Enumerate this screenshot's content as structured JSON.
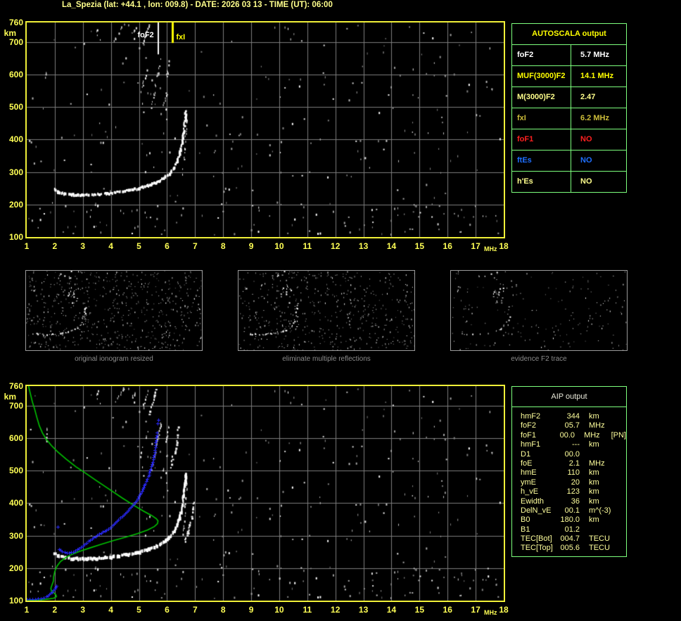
{
  "title": "La_Spezia (lat: +44.1 , lon: 009.8) - DATE: 2026 03 13 - TIME (UT): 06:00",
  "colors": {
    "background": "#000000",
    "plot_border": "#f0f038",
    "grid": "#7d7d7d",
    "axis_label": "#ffff55",
    "title_yellow": "#ffff8c",
    "table_border": "#7dff7d",
    "trace_white": "#ffffff",
    "profile_green": "#00c400",
    "trace_blue": "#2a2aff",
    "caption_gray": "#8c8c8c"
  },
  "axes": {
    "xticks": [
      "1",
      "2",
      "3",
      "4",
      "5",
      "6",
      "7",
      "8",
      "9",
      "10",
      "11",
      "12",
      "13",
      "14",
      "15",
      "16",
      "17",
      "18"
    ],
    "xunit": "MHz",
    "yticks": [
      "760",
      "700",
      "600",
      "500",
      "400",
      "300",
      "200",
      "100"
    ],
    "yunit": "km",
    "xlim": [
      1,
      18
    ],
    "ylim": [
      100,
      760
    ]
  },
  "autoscala": {
    "title": "AUTOSCALA output",
    "rows": [
      {
        "label": "foF2",
        "value": "5.7 MHz",
        "color": "#ffffff"
      },
      {
        "label": "MUF(3000)F2",
        "value": "14.1 MHz",
        "color": "#ffff00"
      },
      {
        "label": "M(3000)F2",
        "value": "2.47",
        "color": "#ffff8c"
      },
      {
        "label": "fxI",
        "value": "6.2 MHz",
        "color": "#cdbd3a"
      },
      {
        "label": "foF1",
        "value": "NO",
        "color": "#ff2020"
      },
      {
        "label": "ftEs",
        "value": "NO",
        "color": "#1f6fff"
      },
      {
        "label": "h'Es",
        "value": "NO",
        "color": "#ffff8c"
      }
    ]
  },
  "aip": {
    "title": "AIP output",
    "rows": [
      {
        "label": "hmF2",
        "value": "344",
        "unit": "km",
        "extra": ""
      },
      {
        "label": "foF2",
        "value": "05.7",
        "unit": "MHz",
        "extra": ""
      },
      {
        "label": "foF1",
        "value": "00.0",
        "unit": "MHz",
        "extra": "[PN]"
      },
      {
        "label": "hmF1",
        "value": "---",
        "unit": "km",
        "extra": ""
      },
      {
        "label": "D1",
        "value": "00.0",
        "unit": "",
        "extra": ""
      },
      {
        "label": "foE",
        "value": "2.1",
        "unit": "MHz",
        "extra": ""
      },
      {
        "label": "hmE",
        "value": "110",
        "unit": "km",
        "extra": ""
      },
      {
        "label": "ymE",
        "value": "20",
        "unit": "km",
        "extra": ""
      },
      {
        "label": "h_vE",
        "value": "123",
        "unit": "km",
        "extra": ""
      },
      {
        "label": "Ewidth",
        "value": "36",
        "unit": "km",
        "extra": ""
      },
      {
        "label": "DelN_vE",
        "value": "00.1",
        "unit": "m^(-3)",
        "extra": ""
      },
      {
        "label": "B0",
        "value": "180.0",
        "unit": "km",
        "extra": ""
      },
      {
        "label": "B1",
        "value": "01.2",
        "unit": "",
        "extra": ""
      },
      {
        "label": "TEC[Bot]",
        "value": "004.7",
        "unit": "TECU",
        "extra": ""
      },
      {
        "label": "TEC[Top]",
        "value": "005.6",
        "unit": "TECU",
        "extra": ""
      }
    ]
  },
  "thumbnails": {
    "items": [
      {
        "caption": "original ionogram resized"
      },
      {
        "caption": "eliminate multiple reflections"
      },
      {
        "caption": "evidence F2 trace"
      }
    ]
  },
  "chart_data": [
    {
      "id": "top-ionogram",
      "type": "scatter",
      "title": "autoscaled ionogram with foF2 / fxI markers",
      "xlabel": "MHz",
      "ylabel": "km",
      "xlim": [
        1,
        18
      ],
      "ylim": [
        100,
        760
      ],
      "grid": true,
      "f2_trace": [
        [
          1.95,
          250
        ],
        [
          2.1,
          242
        ],
        [
          2.3,
          237
        ],
        [
          2.6,
          234
        ],
        [
          3.0,
          233
        ],
        [
          3.4,
          234
        ],
        [
          3.8,
          237
        ],
        [
          4.2,
          241
        ],
        [
          4.6,
          247
        ],
        [
          5.0,
          254
        ],
        [
          5.3,
          262
        ],
        [
          5.6,
          272
        ],
        [
          5.85,
          284
        ],
        [
          6.05,
          298
        ],
        [
          6.2,
          314
        ],
        [
          6.32,
          334
        ],
        [
          6.42,
          358
        ],
        [
          6.5,
          390
        ],
        [
          6.56,
          425
        ],
        [
          6.61,
          460
        ],
        [
          6.64,
          492
        ]
      ],
      "echoes": [
        [
          [
            4.08,
            702
          ],
          [
            4.45,
            758
          ]
        ],
        [
          [
            4.62,
            712
          ],
          [
            4.92,
            750
          ]
        ],
        [
          [
            5.02,
            542
          ],
          [
            5.3,
            622
          ]
        ],
        [
          [
            5.42,
            498
          ],
          [
            5.6,
            566
          ]
        ],
        [
          [
            5.58,
            572
          ],
          [
            5.77,
            650
          ]
        ],
        [
          [
            5.84,
            500
          ],
          [
            6.0,
            556
          ]
        ],
        [
          [
            5.95,
            588
          ],
          [
            6.06,
            642
          ]
        ],
        [
          [
            6.54,
            296
          ],
          [
            6.63,
            376
          ]
        ],
        [
          [
            6.62,
            386
          ],
          [
            6.7,
            462
          ]
        ],
        [
          [
            5.14,
            700
          ],
          [
            5.34,
            756
          ]
        ],
        [
          [
            1.67,
            595
          ],
          [
            1.7,
            632
          ]
        ]
      ],
      "markers": [
        {
          "name": "foF2",
          "f": 5.7,
          "h_end": 662,
          "color": "#ffffff"
        },
        {
          "name": "fxI",
          "f": 6.2,
          "h_end": 697,
          "color": "#ffff00"
        }
      ]
    },
    {
      "id": "bottom-ionogram-aip",
      "type": "scatter",
      "title": "ionogram with restored electron density profile (green) and scaled trace (blue)",
      "xlabel": "MHz",
      "ylabel": "km",
      "xlim": [
        1,
        18
      ],
      "ylim": [
        100,
        760
      ],
      "grid": true,
      "background_note": "same ionogram trace and echoes as top plot",
      "extra_echoes": [
        [
          [
            6.6,
            280
          ],
          [
            6.82,
            344
          ]
        ],
        [
          [
            6.86,
            352
          ],
          [
            6.94,
            415
          ]
        ],
        [
          [
            6.28,
            556
          ],
          [
            6.37,
            634
          ]
        ],
        [
          [
            6.1,
            512
          ],
          [
            6.28,
            584
          ]
        ],
        [
          [
            5.36,
            676
          ],
          [
            5.58,
            750
          ]
        ]
      ],
      "profile_green": [
        [
          1.06,
          762
        ],
        [
          1.12,
          740
        ],
        [
          1.2,
          712
        ],
        [
          1.28,
          690
        ],
        [
          1.36,
          664
        ],
        [
          1.45,
          638
        ],
        [
          1.56,
          616
        ],
        [
          1.7,
          596
        ],
        [
          1.88,
          577
        ],
        [
          2.1,
          558
        ],
        [
          2.4,
          536
        ],
        [
          2.75,
          512
        ],
        [
          3.1,
          492
        ],
        [
          3.5,
          468
        ],
        [
          3.95,
          442
        ],
        [
          4.4,
          416
        ],
        [
          4.8,
          394
        ],
        [
          5.15,
          376
        ],
        [
          5.45,
          362
        ],
        [
          5.62,
          352
        ],
        [
          5.68,
          345
        ],
        [
          5.66,
          337
        ],
        [
          5.55,
          328
        ],
        [
          5.3,
          317
        ],
        [
          4.95,
          306
        ],
        [
          4.55,
          296
        ],
        [
          4.1,
          285
        ],
        [
          3.65,
          273
        ],
        [
          3.25,
          262
        ],
        [
          2.9,
          252
        ],
        [
          2.6,
          242
        ],
        [
          2.38,
          232
        ],
        [
          2.2,
          220
        ],
        [
          2.08,
          206
        ],
        [
          2.0,
          190
        ],
        [
          1.96,
          174
        ],
        [
          1.95,
          160
        ],
        [
          1.9,
          148
        ],
        [
          1.86,
          138
        ],
        [
          1.88,
          130
        ],
        [
          1.96,
          124
        ],
        [
          2.04,
          118
        ],
        [
          2.06,
          112
        ],
        [
          1.95,
          107
        ],
        [
          1.7,
          104
        ],
        [
          1.4,
          101
        ],
        [
          1.0,
          100
        ]
      ],
      "trace_blue_E": [
        [
          1.0,
          104
        ],
        [
          1.1,
          104
        ],
        [
          1.2,
          105
        ],
        [
          1.3,
          105
        ],
        [
          1.4,
          106
        ],
        [
          1.5,
          107
        ],
        [
          1.6,
          109
        ],
        [
          1.7,
          113
        ],
        [
          1.8,
          119
        ],
        [
          1.9,
          127
        ],
        [
          2.0,
          136
        ],
        [
          2.05,
          146
        ]
      ],
      "trace_blue_F": [
        [
          2.15,
          258
        ],
        [
          2.25,
          252
        ],
        [
          2.35,
          249
        ],
        [
          2.5,
          247
        ],
        [
          2.65,
          250
        ],
        [
          2.8,
          257
        ],
        [
          3.0,
          268
        ],
        [
          3.2,
          283
        ],
        [
          3.45,
          298
        ],
        [
          3.65,
          308
        ],
        [
          3.9,
          320
        ],
        [
          4.05,
          331
        ],
        [
          4.2,
          344
        ],
        [
          4.4,
          360
        ],
        [
          4.6,
          378
        ],
        [
          4.8,
          396
        ],
        [
          4.95,
          414
        ],
        [
          5.1,
          438
        ],
        [
          5.22,
          460
        ],
        [
          5.33,
          482
        ],
        [
          5.42,
          505
        ],
        [
          5.49,
          527
        ],
        [
          5.54,
          549
        ],
        [
          5.58,
          571
        ],
        [
          5.61,
          594
        ],
        [
          5.64,
          617
        ]
      ],
      "blue_points": [
        [
          2.11,
          328
        ],
        [
          5.67,
          645
        ],
        [
          5.7,
          657
        ]
      ]
    }
  ]
}
